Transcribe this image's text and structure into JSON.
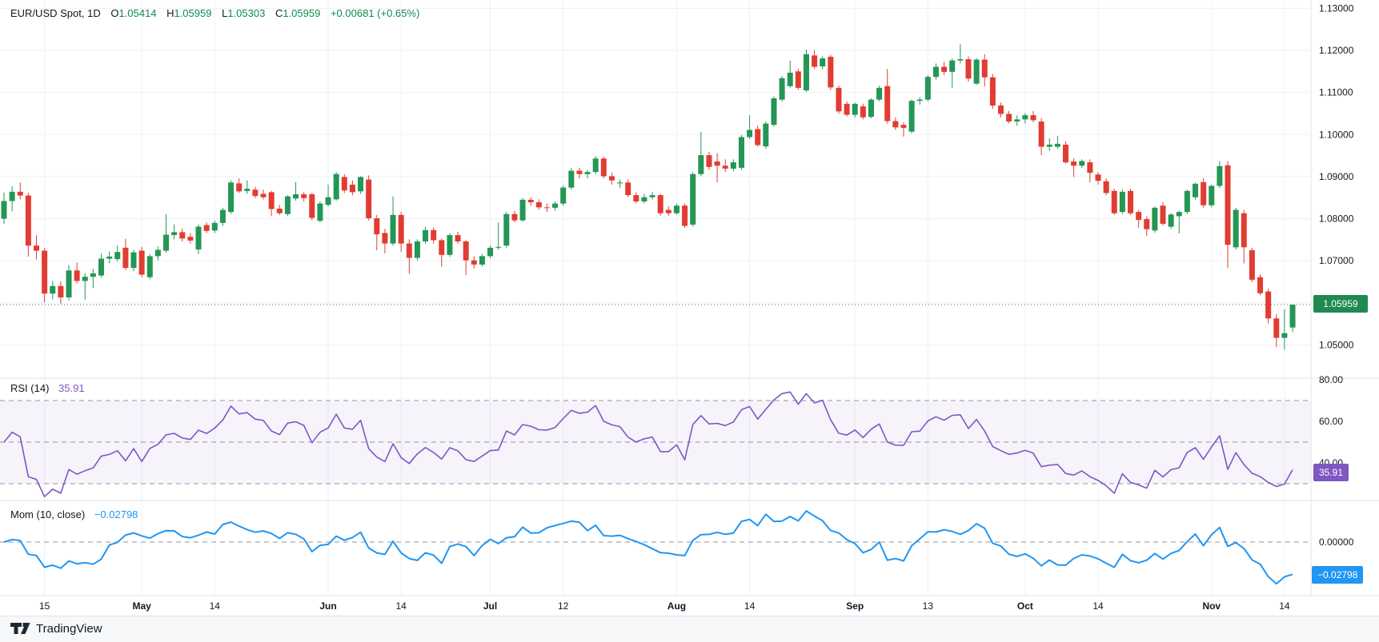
{
  "header": {
    "title": "EUR/USD Spot, 1D",
    "ohlc": [
      {
        "k": "O",
        "v": "1.05414"
      },
      {
        "k": "H",
        "v": "1.05959"
      },
      {
        "k": "L",
        "v": "1.05303"
      },
      {
        "k": "C",
        "v": "1.05959"
      }
    ],
    "change": "+0.00681 (+0.65%)"
  },
  "panes": {
    "rsi": {
      "label": "RSI (14)",
      "value": "35.91"
    },
    "mom": {
      "label": "Mom (10, close)",
      "value": "−0.02798"
    }
  },
  "badges": {
    "price": "1.05959",
    "rsi": "35.91",
    "mom": "−0.02798"
  },
  "footer": {
    "logo_text": "TradingView"
  },
  "colors": {
    "up": "#249655",
    "down": "#e23c32",
    "close_line": "#1e8a50",
    "rsi": "#7e57c2",
    "rsi_band_fill": "rgba(126,87,194,0.07)",
    "mom": "#2196f3",
    "grid": "#eef0f4",
    "separator": "#e0e3eb",
    "axis_text": "#131722",
    "dashed_level": "#9194a0"
  },
  "chart_data": {
    "type": "candlestick",
    "symbol": "EUR/USD Spot",
    "timeframe": "1D",
    "title": "EUR/USD Spot, 1D",
    "last_bar": {
      "open": 1.05414,
      "high": 1.05959,
      "low": 1.05303,
      "close": 1.05959,
      "change": 0.00681,
      "change_pct": 0.65
    },
    "price_axis": {
      "ticks": [
        1.13,
        1.12,
        1.11,
        1.1,
        1.09,
        1.08,
        1.07,
        1.06,
        1.05
      ],
      "tick_labels": [
        "1.13000",
        "1.12000",
        "1.11000",
        "1.10000",
        "1.09000",
        "1.08000",
        "1.07000",
        "1.06000",
        "1.05000"
      ],
      "visible_min": 1.047,
      "visible_max": 1.132,
      "grid": true
    },
    "time_axis": [
      {
        "i": 5,
        "label": "15",
        "bold": false
      },
      {
        "i": 17,
        "label": "May",
        "bold": true
      },
      {
        "i": 26,
        "label": "14",
        "bold": false
      },
      {
        "i": 40,
        "label": "Jun",
        "bold": true
      },
      {
        "i": 49,
        "label": "14",
        "bold": false
      },
      {
        "i": 60,
        "label": "Jul",
        "bold": true
      },
      {
        "i": 69,
        "label": "12",
        "bold": false
      },
      {
        "i": 83,
        "label": "Aug",
        "bold": true
      },
      {
        "i": 92,
        "label": "14",
        "bold": false
      },
      {
        "i": 105,
        "label": "Sep",
        "bold": true
      },
      {
        "i": 114,
        "label": "13",
        "bold": false
      },
      {
        "i": 126,
        "label": "Oct",
        "bold": true
      },
      {
        "i": 135,
        "label": "14",
        "bold": false
      },
      {
        "i": 149,
        "label": "Nov",
        "bold": true
      },
      {
        "i": 158,
        "label": "14",
        "bold": false
      }
    ],
    "candles": [
      [
        1.08,
        1.0862,
        1.0788,
        1.0842
      ],
      [
        1.0842,
        1.0877,
        1.0818,
        1.0864
      ],
      [
        1.0864,
        1.0886,
        1.0846,
        1.0855
      ],
      [
        1.0855,
        1.0862,
        1.071,
        1.0736
      ],
      [
        1.0736,
        1.0761,
        1.0703,
        1.0724
      ],
      [
        1.0724,
        1.0731,
        1.0601,
        1.0622
      ],
      [
        1.0622,
        1.0652,
        1.0608,
        1.064
      ],
      [
        1.064,
        1.0651,
        1.0598,
        1.0613
      ],
      [
        1.0613,
        1.069,
        1.0606,
        1.0677
      ],
      [
        1.0677,
        1.0696,
        1.0646,
        1.0652
      ],
      [
        1.0652,
        1.0671,
        1.0608,
        1.0662
      ],
      [
        1.0662,
        1.0681,
        1.0635,
        1.067
      ],
      [
        1.0665,
        1.0717,
        1.066,
        1.0705
      ],
      [
        1.0705,
        1.0722,
        1.0694,
        1.071
      ],
      [
        1.0704,
        1.0736,
        1.0698,
        1.0721
      ],
      [
        1.0731,
        1.0752,
        1.0678,
        1.0683
      ],
      [
        1.0683,
        1.0726,
        1.0675,
        1.072
      ],
      [
        1.0724,
        1.0733,
        1.0661,
        1.0667
      ],
      [
        1.0661,
        1.0716,
        1.0656,
        1.0711
      ],
      [
        1.0711,
        1.0734,
        1.0701,
        1.0726
      ],
      [
        1.0724,
        1.0811,
        1.0719,
        1.0762
      ],
      [
        1.0761,
        1.0786,
        1.0751,
        1.0768
      ],
      [
        1.0768,
        1.0776,
        1.0746,
        1.0753
      ],
      [
        1.0757,
        1.0766,
        1.0741,
        1.0748
      ],
      [
        1.0727,
        1.0786,
        1.0716,
        1.0781
      ],
      [
        1.0785,
        1.0791,
        1.0766,
        1.0771
      ],
      [
        1.0772,
        1.0796,
        1.0766,
        1.079
      ],
      [
        1.079,
        1.0826,
        1.0783,
        1.0821
      ],
      [
        1.0816,
        1.0891,
        1.0811,
        1.0886
      ],
      [
        1.0884,
        1.0896,
        1.0861,
        1.0865
      ],
      [
        1.0866,
        1.0891,
        1.0859,
        1.0871
      ],
      [
        1.0869,
        1.0876,
        1.0849,
        1.0854
      ],
      [
        1.0859,
        1.0869,
        1.0846,
        1.0851
      ],
      [
        1.0863,
        1.0866,
        1.0806,
        1.0823
      ],
      [
        1.0824,
        1.0833,
        1.0809,
        1.0813
      ],
      [
        1.0811,
        1.0856,
        1.0806,
        1.0853
      ],
      [
        1.0848,
        1.0887,
        1.0843,
        1.0858
      ],
      [
        1.0858,
        1.0863,
        1.0841,
        1.0849
      ],
      [
        1.0858,
        1.0861,
        1.0796,
        1.0802
      ],
      [
        1.0795,
        1.0841,
        1.0791,
        1.0836
      ],
      [
        1.0833,
        1.0881,
        1.0829,
        1.0851
      ],
      [
        1.0846,
        1.0911,
        1.0843,
        1.0906
      ],
      [
        1.0899,
        1.0906,
        1.0861,
        1.0867
      ],
      [
        1.0881,
        1.0891,
        1.0856,
        1.0863
      ],
      [
        1.0865,
        1.0901,
        1.0859,
        1.0899
      ],
      [
        1.0893,
        1.0903,
        1.0796,
        1.0801
      ],
      [
        1.0801,
        1.0809,
        1.0725,
        1.0763
      ],
      [
        1.0766,
        1.0776,
        1.0718,
        1.0741
      ],
      [
        1.0741,
        1.0853,
        1.0736,
        1.0809
      ],
      [
        1.0809,
        1.0816,
        1.0721,
        1.0741
      ],
      [
        1.0741,
        1.0751,
        1.0669,
        1.0707
      ],
      [
        1.0707,
        1.0751,
        1.0701,
        1.0746
      ],
      [
        1.0746,
        1.0781,
        1.0741,
        1.0773
      ],
      [
        1.0773,
        1.0779,
        1.0741,
        1.0749
      ],
      [
        1.0749,
        1.0753,
        1.0686,
        1.0714
      ],
      [
        1.0714,
        1.0766,
        1.0709,
        1.0761
      ],
      [
        1.0761,
        1.0769,
        1.0741,
        1.0746
      ],
      [
        1.0746,
        1.0749,
        1.0666,
        1.0701
      ],
      [
        1.0701,
        1.0711,
        1.0681,
        1.0691
      ],
      [
        1.0691,
        1.0716,
        1.0686,
        1.0711
      ],
      [
        1.0711,
        1.0736,
        1.0706,
        1.0731
      ],
      [
        1.0731,
        1.0791,
        1.0726,
        1.0733
      ],
      [
        1.0736,
        1.0816,
        1.0731,
        1.0811
      ],
      [
        1.0811,
        1.0819,
        1.0791,
        1.0796
      ],
      [
        1.0796,
        1.0849,
        1.0793,
        1.0845
      ],
      [
        1.0845,
        1.0851,
        1.0831,
        1.0839
      ],
      [
        1.0839,
        1.0846,
        1.0821,
        1.0827
      ],
      [
        1.0827,
        1.0836,
        1.0816,
        1.0826
      ],
      [
        1.0826,
        1.0841,
        1.0819,
        1.0836
      ],
      [
        1.0836,
        1.0879,
        1.0831,
        1.0874
      ],
      [
        1.0874,
        1.0921,
        1.0869,
        1.0914
      ],
      [
        1.0914,
        1.0921,
        1.0896,
        1.0906
      ],
      [
        1.0906,
        1.0916,
        1.0896,
        1.0911
      ],
      [
        1.0911,
        1.0949,
        1.0906,
        1.0943
      ],
      [
        1.0943,
        1.0948,
        1.0896,
        1.0901
      ],
      [
        1.0901,
        1.0909,
        1.0881,
        1.0891
      ],
      [
        1.0884,
        1.0893,
        1.0873,
        1.0886
      ],
      [
        1.0886,
        1.0893,
        1.0851,
        1.0856
      ],
      [
        1.0856,
        1.0863,
        1.0836,
        1.0841
      ],
      [
        1.0841,
        1.0859,
        1.0836,
        1.0851
      ],
      [
        1.0851,
        1.0863,
        1.0846,
        1.0856
      ],
      [
        1.0856,
        1.0859,
        1.0807,
        1.0813
      ],
      [
        1.0821,
        1.0829,
        1.0806,
        1.0813
      ],
      [
        1.0813,
        1.0836,
        1.0809,
        1.0831
      ],
      [
        1.0831,
        1.0836,
        1.0778,
        1.0783
      ],
      [
        1.0786,
        1.0911,
        1.0781,
        1.0906
      ],
      [
        1.0906,
        1.1006,
        1.0901,
        1.0951
      ],
      [
        1.0951,
        1.0959,
        1.0916,
        1.0923
      ],
      [
        1.0936,
        1.0956,
        1.0886,
        1.0926
      ],
      [
        1.0926,
        1.0941,
        1.0911,
        1.0919
      ],
      [
        1.0919,
        1.0941,
        1.0913,
        1.0934
      ],
      [
        1.0921,
        1.0999,
        1.0916,
        1.0994
      ],
      [
        1.0994,
        1.1046,
        1.0989,
        1.1011
      ],
      [
        1.1013,
        1.1021,
        1.0971,
        1.0975
      ],
      [
        1.0972,
        1.1031,
        1.0966,
        1.1026
      ],
      [
        1.1023,
        1.1091,
        1.1019,
        1.1086
      ],
      [
        1.1083,
        1.1139,
        1.1079,
        1.1134
      ],
      [
        1.1115,
        1.1175,
        1.1111,
        1.1147
      ],
      [
        1.115,
        1.1156,
        1.1106,
        1.1111
      ],
      [
        1.1105,
        1.1202,
        1.1101,
        1.1191
      ],
      [
        1.1188,
        1.12,
        1.1156,
        1.1161
      ],
      [
        1.1162,
        1.1186,
        1.1156,
        1.1181
      ],
      [
        1.1185,
        1.1189,
        1.1106,
        1.1112
      ],
      [
        1.1111,
        1.1116,
        1.1049,
        1.1055
      ],
      [
        1.1073,
        1.1079,
        1.1043,
        1.1047
      ],
      [
        1.1047,
        1.1076,
        1.1041,
        1.1073
      ],
      [
        1.1067,
        1.1073,
        1.1036,
        1.1041
      ],
      [
        1.1042,
        1.1086,
        1.1039,
        1.1083
      ],
      [
        1.1083,
        1.1116,
        1.1079,
        1.1111
      ],
      [
        1.1115,
        1.1156,
        1.1026,
        1.1032
      ],
      [
        1.1032,
        1.1041,
        1.1011,
        1.1017
      ],
      [
        1.1023,
        1.1029,
        1.0995,
        1.1016
      ],
      [
        1.1007,
        1.1083,
        1.1003,
        1.108
      ],
      [
        1.108,
        1.1089,
        1.1071,
        1.1083
      ],
      [
        1.1083,
        1.1141,
        1.1079,
        1.1137
      ],
      [
        1.1137,
        1.1169,
        1.1131,
        1.1161
      ],
      [
        1.1161,
        1.1173,
        1.1141,
        1.1149
      ],
      [
        1.1149,
        1.1181,
        1.1111,
        1.1176
      ],
      [
        1.1176,
        1.1215,
        1.1169,
        1.1179
      ],
      [
        1.1179,
        1.1186,
        1.1126,
        1.1133
      ],
      [
        1.1121,
        1.1181,
        1.1118,
        1.1178
      ],
      [
        1.1178,
        1.1191,
        1.1114,
        1.1136
      ],
      [
        1.1136,
        1.1144,
        1.1061,
        1.1069
      ],
      [
        1.1069,
        1.1076,
        1.1041,
        1.1049
      ],
      [
        1.1049,
        1.1056,
        1.1026,
        1.1031
      ],
      [
        1.1031,
        1.1046,
        1.1021,
        1.1036
      ],
      [
        1.1036,
        1.1051,
        1.1026,
        1.1046
      ],
      [
        1.1046,
        1.1056,
        1.1029,
        1.1034
      ],
      [
        1.1031,
        1.1039,
        1.0951,
        1.0971
      ],
      [
        1.0971,
        1.0991,
        1.0961,
        1.0976
      ],
      [
        1.0971,
        1.0997,
        1.0966,
        1.0978
      ],
      [
        1.0976,
        1.0984,
        1.0931,
        1.0934
      ],
      [
        1.0936,
        1.0944,
        1.0899,
        1.0926
      ],
      [
        1.0926,
        1.0941,
        1.0921,
        1.0937
      ],
      [
        1.0934,
        1.0941,
        1.0886,
        1.0909
      ],
      [
        1.0905,
        1.0911,
        1.0881,
        1.089
      ],
      [
        1.0889,
        1.0896,
        1.0856,
        1.0861
      ],
      [
        1.0866,
        1.0871,
        1.0809,
        1.0813
      ],
      [
        1.0816,
        1.0869,
        1.0811,
        1.0864
      ],
      [
        1.0866,
        1.0871,
        1.0809,
        1.0813
      ],
      [
        1.0816,
        1.0821,
        1.0778,
        1.0797
      ],
      [
        1.0799,
        1.0806,
        1.0759,
        1.0775
      ],
      [
        1.0772,
        1.0829,
        1.0767,
        1.0826
      ],
      [
        1.0831,
        1.0839,
        1.0783,
        1.0788
      ],
      [
        1.0781,
        1.0813,
        1.0776,
        1.081
      ],
      [
        1.0806,
        1.0819,
        1.0765,
        1.0816
      ],
      [
        1.0816,
        1.0869,
        1.0811,
        1.0866
      ],
      [
        1.0851,
        1.0886,
        1.0846,
        1.0883
      ],
      [
        1.0887,
        1.0896,
        1.0826,
        1.0832
      ],
      [
        1.0832,
        1.0881,
        1.0827,
        1.0878
      ],
      [
        1.0878,
        1.0937,
        1.0873,
        1.0925
      ],
      [
        1.0927,
        1.0937,
        1.0683,
        1.0738
      ],
      [
        1.0732,
        1.0826,
        1.0727,
        1.0821
      ],
      [
        1.0813,
        1.0821,
        1.0694,
        1.0732
      ],
      [
        1.0725,
        1.0731,
        1.0649,
        1.0655
      ],
      [
        1.0661,
        1.0668,
        1.0618,
        1.0623
      ],
      [
        1.0627,
        1.0634,
        1.0551,
        1.0563
      ],
      [
        1.0563,
        1.0573,
        1.0495,
        1.0517
      ],
      [
        1.0517,
        1.0585,
        1.0489,
        1.0528
      ],
      [
        1.05414,
        1.05959,
        1.05303,
        1.05959
      ]
    ],
    "indicators": {
      "rsi": {
        "name": "RSI",
        "period": 14,
        "last": 35.91,
        "band": [
          30,
          70
        ],
        "levels": [
          70,
          50,
          30
        ],
        "axis_ticks": [
          80,
          60,
          40
        ],
        "axis_tick_labels": [
          "80.00",
          "60.00",
          "40.00"
        ]
      },
      "momentum": {
        "name": "Mom",
        "period": 10,
        "source": "close",
        "last": -0.02798,
        "axis_ticks": [
          0
        ],
        "axis_tick_labels": [
          "0.00000"
        ]
      }
    },
    "last_close_line": 1.05959,
    "legend_position": "top-left",
    "grid": true
  }
}
